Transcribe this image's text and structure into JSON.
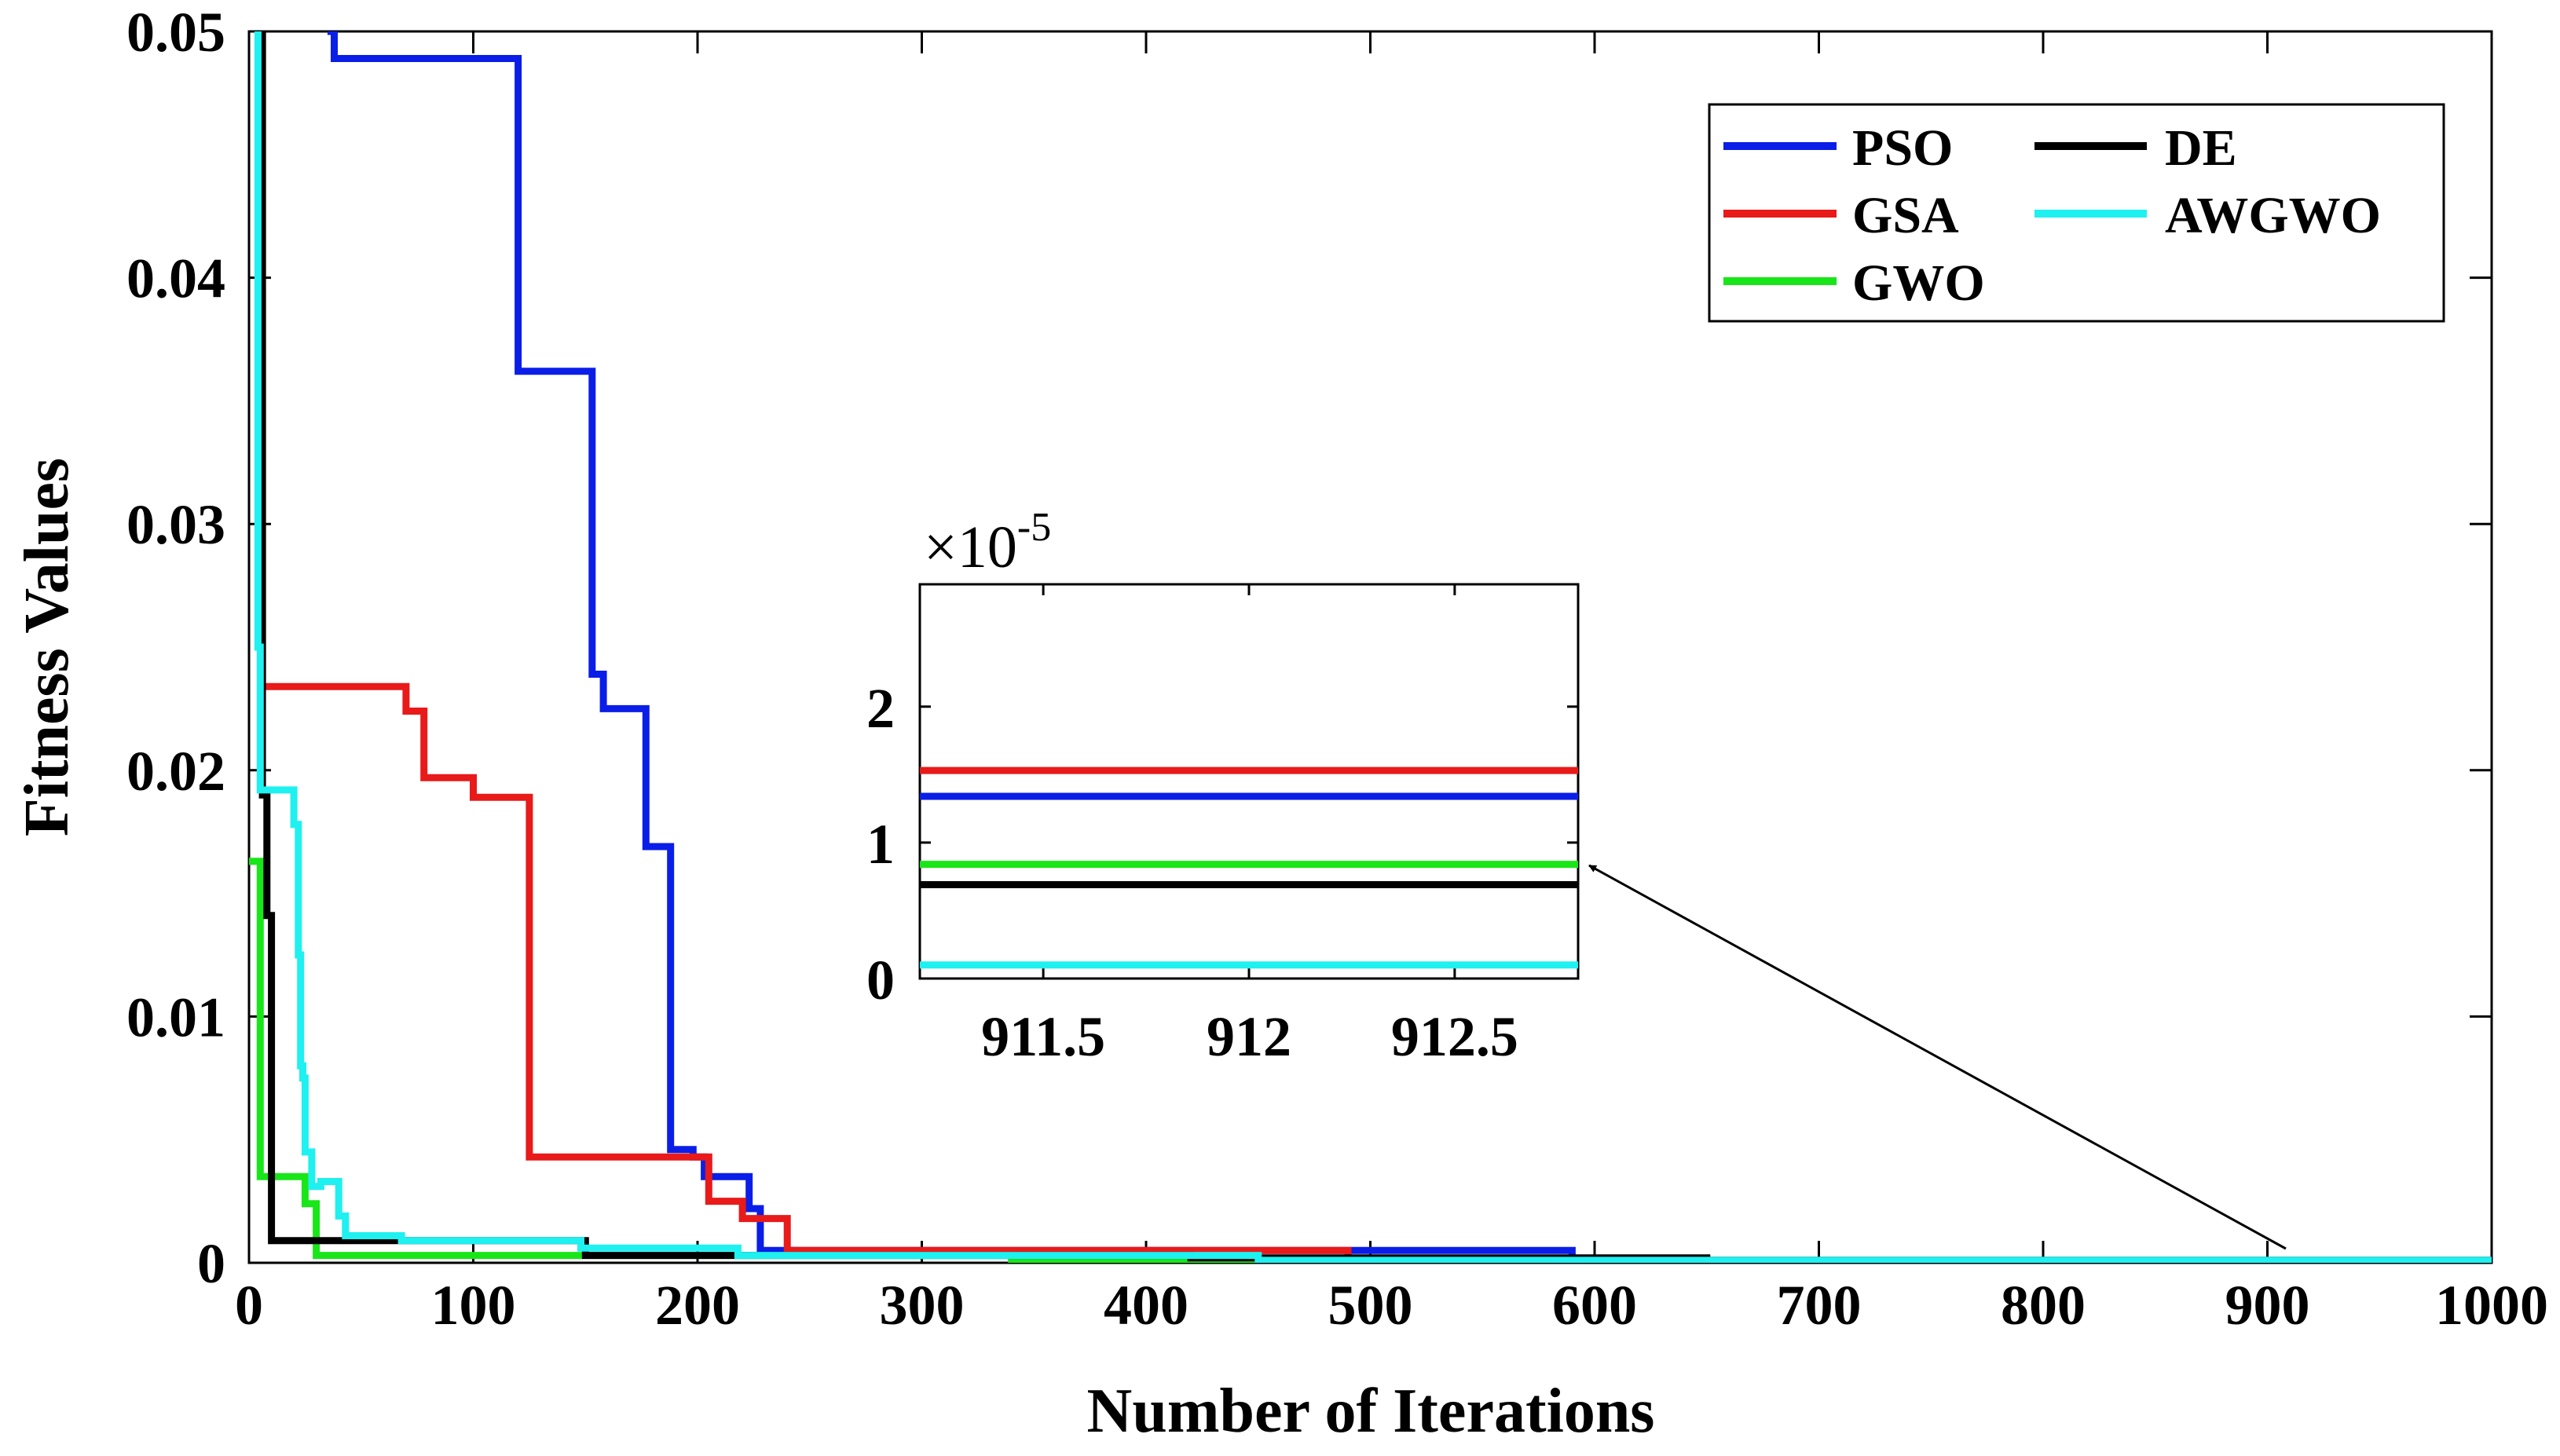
{
  "chart_data": [
    {
      "type": "line",
      "title": "",
      "xlabel": "Number of Iterations",
      "ylabel": "Fitness Values",
      "xlim": [
        0,
        1000
      ],
      "ylim": [
        0,
        0.05
      ],
      "xticks": [
        0,
        100,
        200,
        300,
        400,
        500,
        600,
        700,
        800,
        900,
        1000
      ],
      "xtick_labels": [
        "0",
        "100",
        "200",
        "300",
        "400",
        "500",
        "600",
        "700",
        "800",
        "900",
        "1000"
      ],
      "yticks": [
        0,
        0.01,
        0.02,
        0.03,
        0.04,
        0.05
      ],
      "ytick_labels": [
        "0",
        "0.01",
        "0.02",
        "0.03",
        "0.04",
        "0.05"
      ],
      "legend_position": "top-right",
      "series": [
        {
          "name": "PSO",
          "color": "#0a1ee8",
          "x": [
            35,
            38,
            38,
            120,
            120,
            153,
            153,
            158,
            158,
            166,
            166,
            177,
            177,
            182,
            182,
            188,
            188,
            198,
            198,
            203,
            203,
            223,
            223,
            228,
            228,
            590,
            590,
            1000
          ],
          "y": [
            0.05,
            0.05,
            0.0489,
            0.0489,
            0.0362,
            0.0362,
            0.0239,
            0.0239,
            0.0225,
            0.0225,
            0.0225,
            0.0225,
            0.0169,
            0.0169,
            0.0169,
            0.0169,
            0.0046,
            0.0046,
            0.0043,
            0.0043,
            0.0035,
            0.0035,
            0.0022,
            0.0022,
            0.0005,
            0.0005,
            0.0001,
            0.0001
          ]
        },
        {
          "name": "GSA",
          "color": "#e81a1a",
          "x": [
            5,
            6,
            6,
            8,
            8,
            70,
            70,
            78,
            78,
            100,
            100,
            125,
            125,
            200,
            200,
            205,
            205,
            220,
            220,
            240,
            240,
            490,
            490,
            1000
          ],
          "y": [
            0.05,
            0.05,
            0.0234,
            0.0234,
            0.0234,
            0.0234,
            0.0224,
            0.0224,
            0.0197,
            0.0197,
            0.0189,
            0.0189,
            0.0043,
            0.0043,
            0.0043,
            0.0043,
            0.0025,
            0.0025,
            0.0018,
            0.0018,
            0.0005,
            0.0005,
            0.0001,
            0.0001
          ]
        },
        {
          "name": "GWO",
          "color": "#19e619",
          "x": [
            0,
            3,
            3,
            5,
            5,
            25,
            25,
            30,
            30,
            340,
            340,
            1000
          ],
          "y": [
            0.0163,
            0.0163,
            0.0163,
            0.0163,
            0.0035,
            0.0035,
            0.0024,
            0.0024,
            0.0003,
            0.0003,
            0.0001,
            0.0001
          ]
        },
        {
          "name": "DE",
          "color": "#000000",
          "x": [
            5,
            6,
            6,
            8,
            8,
            10,
            10,
            150,
            150,
            420,
            420,
            650,
            650,
            1000
          ],
          "y": [
            0.05,
            0.05,
            0.019,
            0.019,
            0.0141,
            0.0141,
            0.0009,
            0.0009,
            0.0003,
            0.0003,
            0.0002,
            0.0002,
            0.0001,
            0.0001
          ]
        },
        {
          "name": "AWGWO",
          "color": "#1ff0f0",
          "x": [
            3,
            4,
            4,
            5,
            5,
            20,
            20,
            22,
            22,
            23,
            23,
            24,
            24,
            25,
            25,
            28,
            28,
            32,
            32,
            36,
            36,
            40,
            40,
            43,
            43,
            68,
            68,
            148,
            148,
            218,
            218,
            450,
            450,
            1000
          ],
          "y": [
            0.05,
            0.05,
            0.025,
            0.025,
            0.0192,
            0.0192,
            0.0178,
            0.0178,
            0.0125,
            0.0125,
            0.008,
            0.008,
            0.0075,
            0.0075,
            0.0045,
            0.0045,
            0.0031,
            0.0031,
            0.0033,
            0.0033,
            0.0033,
            0.0033,
            0.0019,
            0.0019,
            0.0011,
            0.0011,
            0.0009,
            0.0009,
            0.0006,
            0.0006,
            0.0003,
            0.0003,
            0.0001,
            0.0001
          ]
        }
      ]
    },
    {
      "type": "line",
      "title": "",
      "xlim": [
        911.2,
        912.8
      ],
      "ylim": [
        0,
        2.9
      ],
      "xticks": [
        911.5,
        912,
        912.5
      ],
      "xtick_labels": [
        "911.5",
        "912",
        "912.5"
      ],
      "yticks": [
        0,
        1,
        2
      ],
      "ytick_labels": [
        "0",
        "1",
        "2"
      ],
      "exponent_base": "×10",
      "exponent_power": "-5",
      "zoom_target": {
        "x": 912,
        "y": 0
      },
      "series": [
        {
          "name": "GSA",
          "color": "#e81a1a",
          "y": 1.53
        },
        {
          "name": "PSO",
          "color": "#0a1ee8",
          "y": 1.34
        },
        {
          "name": "GWO",
          "color": "#19e619",
          "y": 0.84
        },
        {
          "name": "DE",
          "color": "#000000",
          "y": 0.69
        },
        {
          "name": "AWGWO",
          "color": "#1ff0f0",
          "y": 0.1
        }
      ]
    }
  ]
}
